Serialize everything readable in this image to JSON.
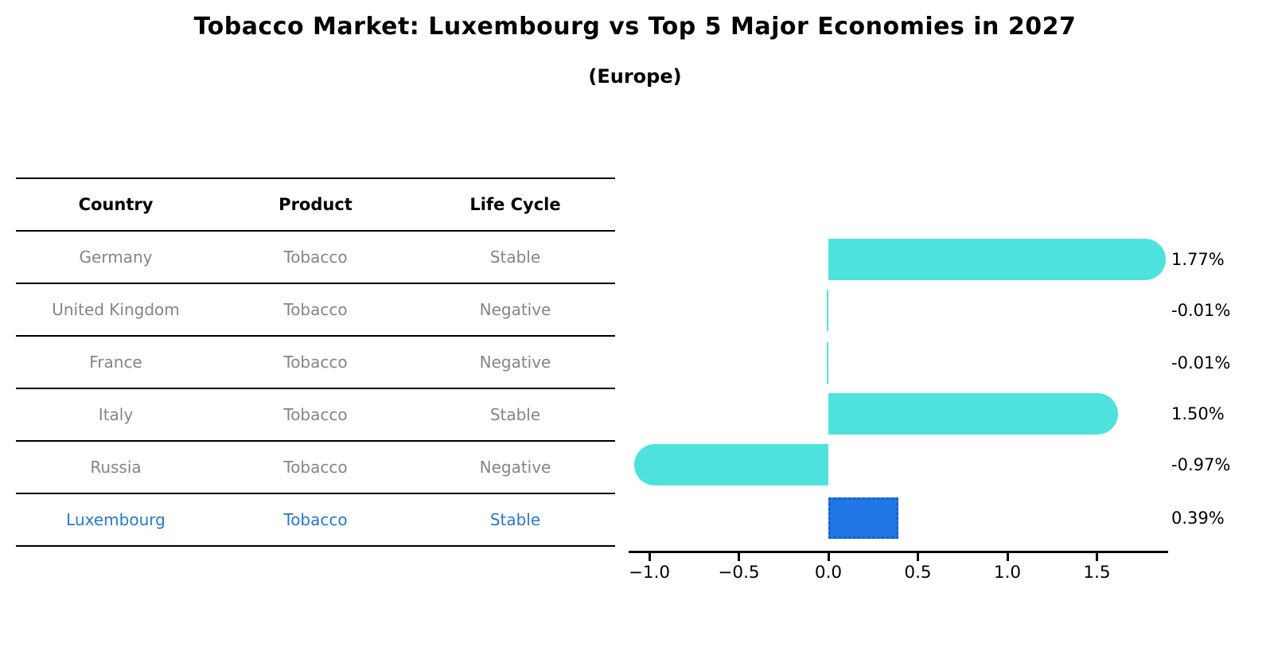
{
  "title": "Tobacco Market: Luxembourg vs Top 5 Major Economies in 2027",
  "subtitle": "(Europe)",
  "table": {
    "headers": [
      "Country",
      "Product",
      "Life Cycle"
    ],
    "rows": [
      {
        "country": "Germany",
        "product": "Tobacco",
        "life_cycle": "Stable",
        "highlight": false
      },
      {
        "country": "United Kingdom",
        "product": "Tobacco",
        "life_cycle": "Negative",
        "highlight": false
      },
      {
        "country": "France",
        "product": "Tobacco",
        "life_cycle": "Negative",
        "highlight": false
      },
      {
        "country": "Italy",
        "product": "Tobacco",
        "life_cycle": "Stable",
        "highlight": false
      },
      {
        "country": "Russia",
        "product": "Tobacco",
        "life_cycle": "Negative",
        "highlight": false
      },
      {
        "country": "Luxembourg",
        "product": "Tobacco",
        "life_cycle": "Stable",
        "highlight": true
      }
    ]
  },
  "chart_data": {
    "type": "bar",
    "orientation": "horizontal",
    "categories": [
      "Germany",
      "United Kingdom",
      "France",
      "Italy",
      "Russia",
      "Luxembourg"
    ],
    "values": [
      1.77,
      -0.01,
      -0.01,
      1.5,
      -0.97,
      0.39
    ],
    "value_labels": [
      "1.77%",
      "-0.01%",
      "-0.01%",
      "1.50%",
      "-0.97%",
      "0.39%"
    ],
    "highlight_index": 5,
    "x_tick_values": [
      -1.0,
      -0.5,
      0.0,
      0.5,
      1.0,
      1.5
    ],
    "x_tick_labels": [
      "−1.0",
      "−0.5",
      "0.0",
      "0.5",
      "1.0",
      "1.5"
    ],
    "xlim": [
      -1.12,
      1.9
    ],
    "grid": false,
    "legend": false,
    "bar_color": "#4DE3DC",
    "highlight_bar_color": "#2176E6",
    "highlight_border_color": "#1A5FC4",
    "highlight_text_color": "#2878CD"
  }
}
